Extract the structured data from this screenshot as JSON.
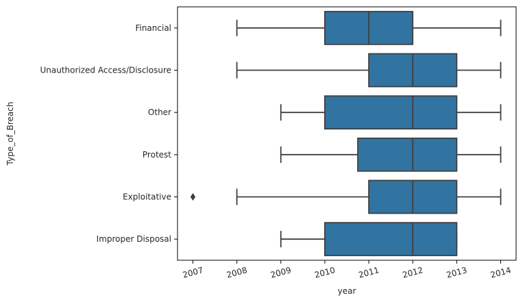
{
  "chart_data": {
    "type": "boxplot",
    "orientation": "horizontal",
    "xlabel": "year",
    "ylabel": "Type_of_Breach",
    "xlim": [
      2006.65,
      2014.35
    ],
    "xticks": [
      2007,
      2008,
      2009,
      2010,
      2011,
      2012,
      2013,
      2014
    ],
    "x_tick_rotation_deg": -15,
    "grid": false,
    "legend": "none",
    "box_color": "#3274a1",
    "line_color": "#3f3f3f",
    "categories": [
      "Financial",
      "Unauthorized Access/Disclosure",
      "Other",
      "Protest",
      "Exploitative",
      "Improper Disposal"
    ],
    "boxes": [
      {
        "category": "Financial",
        "whislo": 2008,
        "q1": 2010,
        "median": 2011,
        "q3": 2012,
        "whishi": 2014,
        "fliers": []
      },
      {
        "category": "Unauthorized Access/Disclosure",
        "whislo": 2008,
        "q1": 2011,
        "median": 2012,
        "q3": 2013,
        "whishi": 2014,
        "fliers": []
      },
      {
        "category": "Other",
        "whislo": 2009,
        "q1": 2010,
        "median": 2012,
        "q3": 2013,
        "whishi": 2014,
        "fliers": []
      },
      {
        "category": "Protest",
        "whislo": 2009,
        "q1": 2010.75,
        "median": 2012,
        "q3": 2013,
        "whishi": 2014,
        "fliers": []
      },
      {
        "category": "Exploitative",
        "whislo": 2008,
        "q1": 2011,
        "median": 2012,
        "q3": 2013,
        "whishi": 2014,
        "fliers": [
          2007
        ]
      },
      {
        "category": "Improper Disposal",
        "whislo": 2009,
        "q1": 2010,
        "median": 2012,
        "q3": 2013,
        "whishi": 2013,
        "fliers": []
      }
    ]
  }
}
